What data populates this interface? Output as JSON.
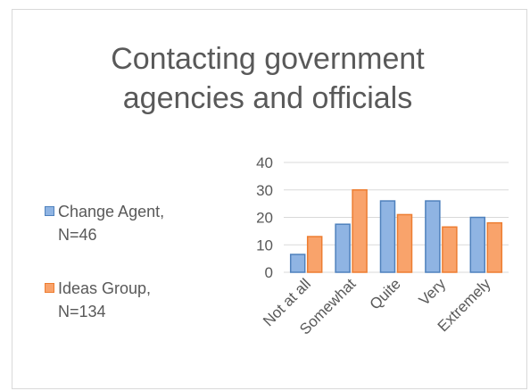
{
  "chart_data": {
    "type": "bar",
    "title": "Contacting government agencies and officials",
    "categories": [
      "Not at all",
      "Somewhat",
      "Quite",
      "Very",
      "Extremely"
    ],
    "series": [
      {
        "name": "Change Agent, N=46",
        "color": "#8fb4e3",
        "values": [
          6.5,
          17.5,
          26,
          26,
          20
        ]
      },
      {
        "name": "Ideas Group, N=134",
        "color": "#f9a36b",
        "values": [
          13,
          30,
          21,
          16.5,
          18
        ]
      }
    ],
    "ylim": [
      0,
      40
    ],
    "yticks": [
      0,
      10,
      20,
      30,
      40
    ],
    "grid": true,
    "legend": "left"
  }
}
